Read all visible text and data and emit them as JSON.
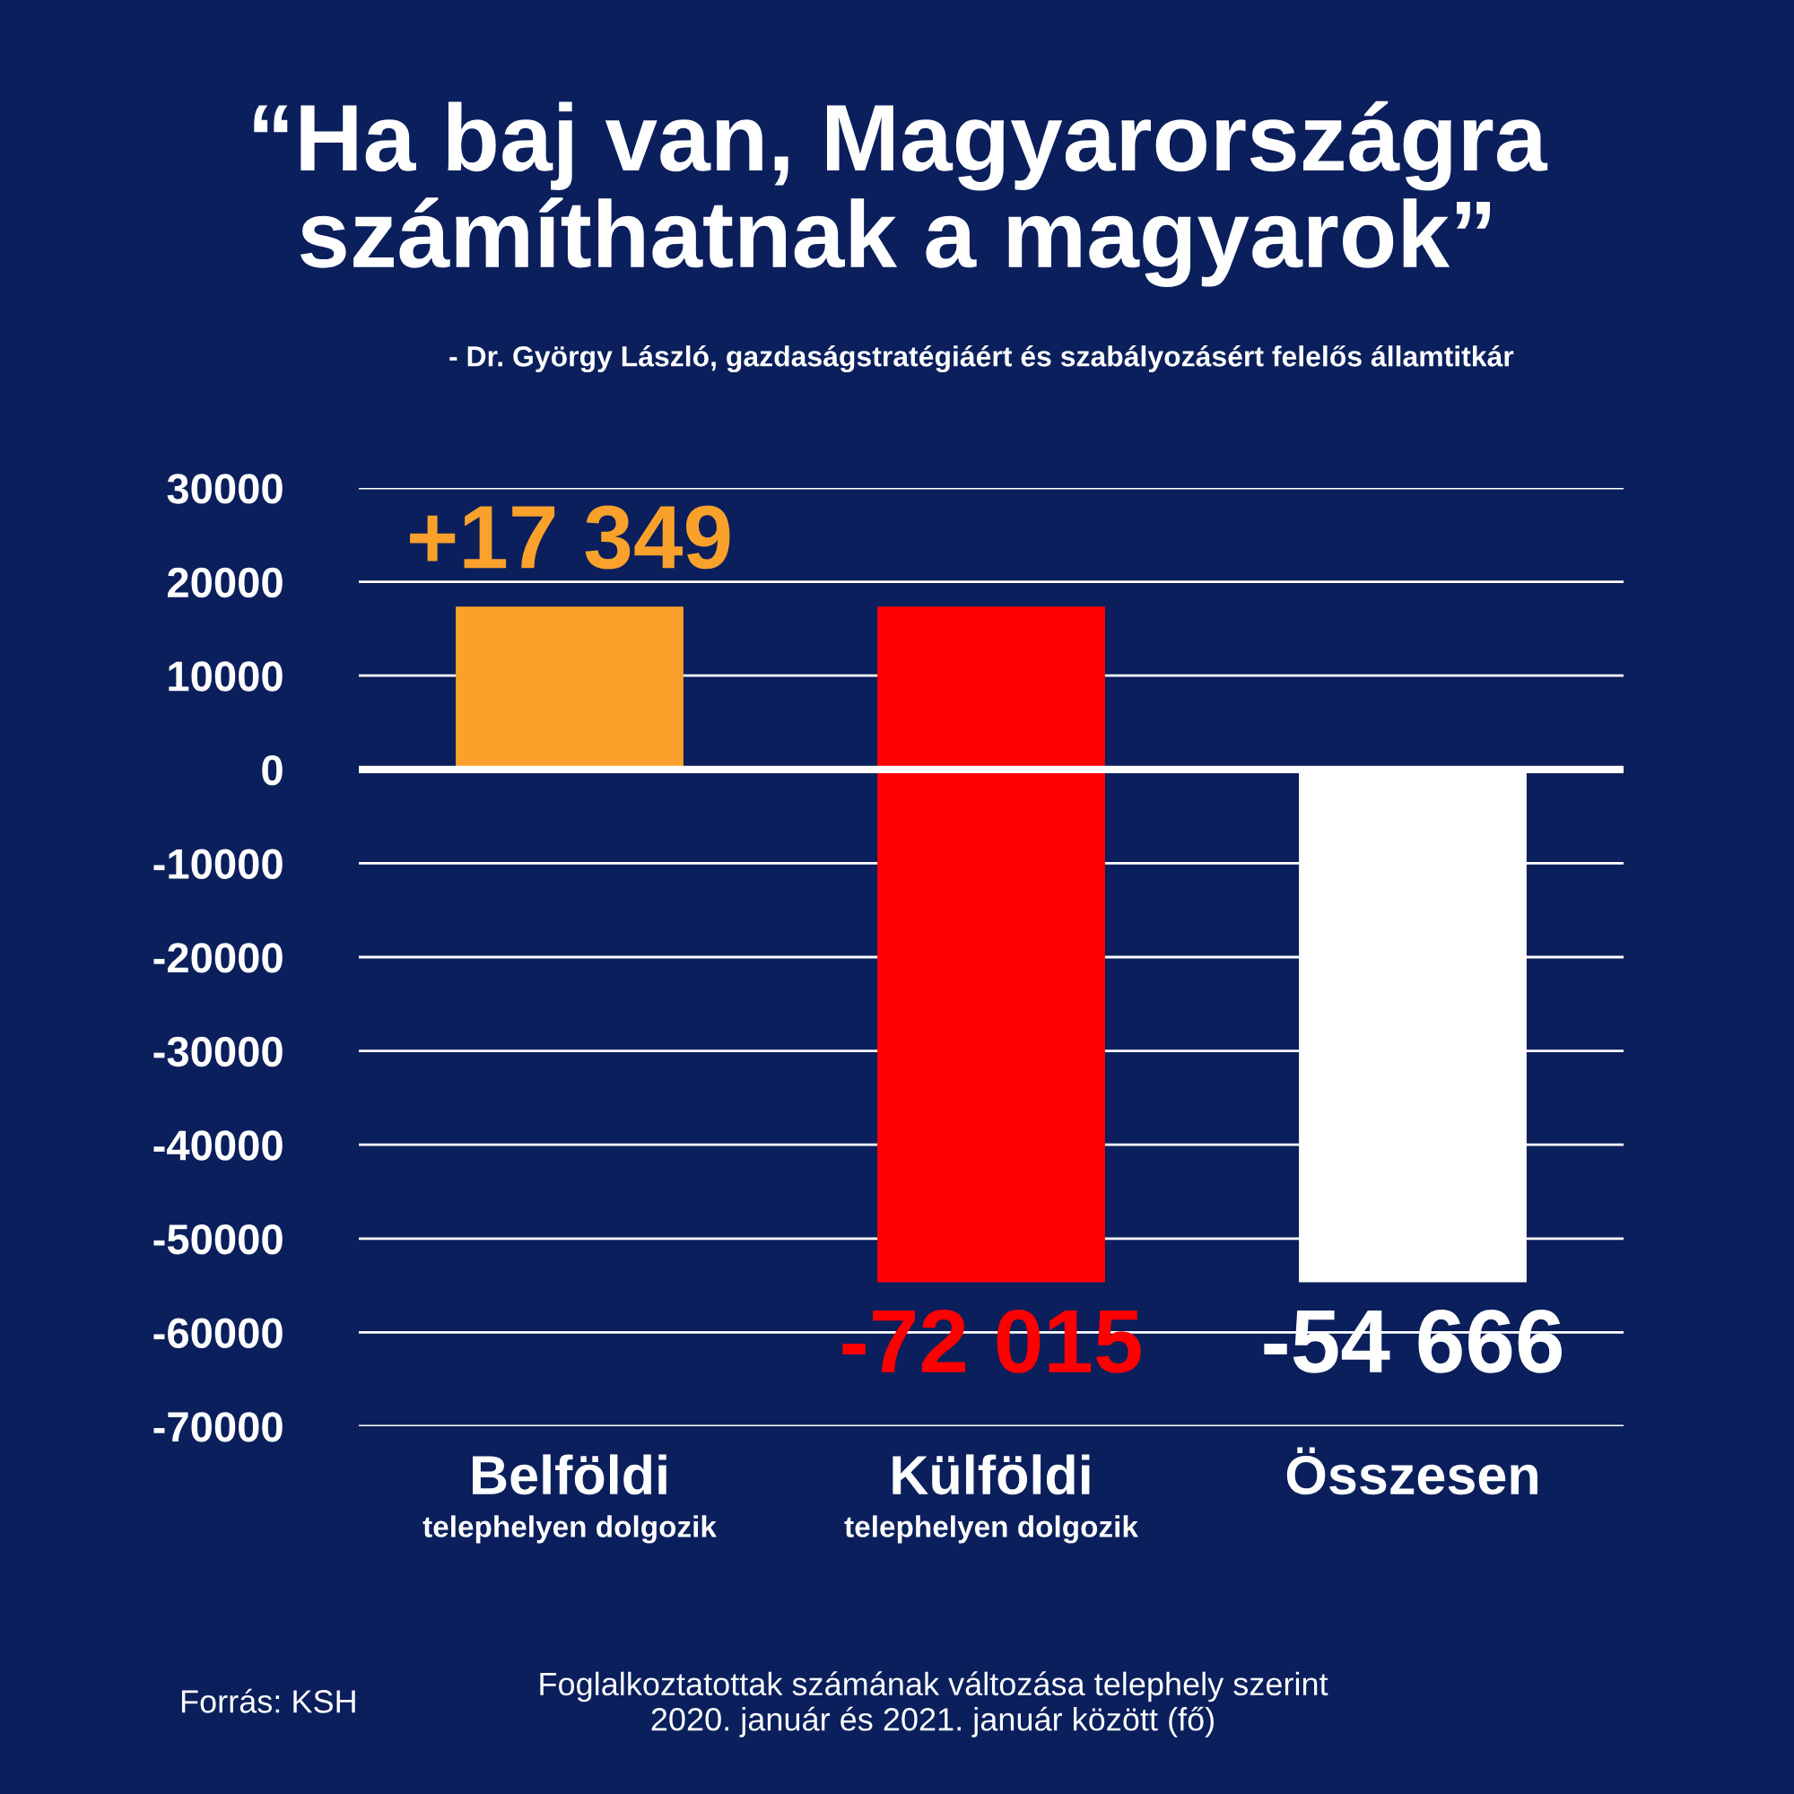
{
  "chart_data": {
    "type": "bar",
    "title": "“Ha baj van, Magyarországra\nszámíthatnak a magyarok”",
    "subtitle": "- Dr. György László, gazdaságstratégiáért és szabályozásért felelős államtitkár",
    "categories": [
      "Belföldi\ntelephelyen dolgozik",
      "Külföldi\ntelephelyen dolgozik",
      "Összesen"
    ],
    "values": [
      17349,
      -72015,
      -54666
    ],
    "base": [
      0,
      17349,
      0
    ],
    "colors": [
      "#f9a12b",
      "#ff0000",
      "#ffffff"
    ],
    "value_labels": [
      "+17 349",
      "-72 015",
      "-54 666"
    ],
    "ylim": [
      -70000,
      30000
    ],
    "yticks": [
      -70000,
      -60000,
      -50000,
      -40000,
      -30000,
      -20000,
      -10000,
      0,
      10000,
      20000,
      30000
    ],
    "grid": "y",
    "legend": false,
    "annotations": [
      "Forrás: KSH",
      "Foglalkoztatottak számának változása telephely szerint\n2020. január és 2021. január között (fő)"
    ]
  }
}
